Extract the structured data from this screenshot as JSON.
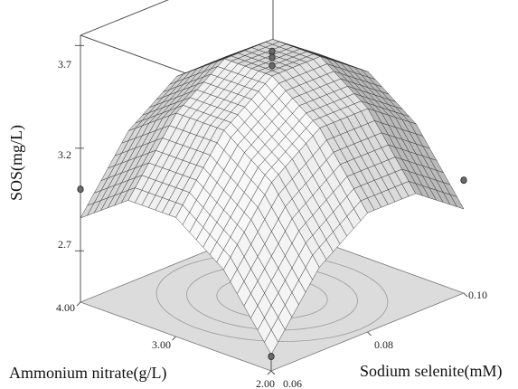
{
  "chart_data": {
    "type": "surface3d",
    "zlabel": "SOS(mg/L)",
    "xlabel": "Ammonium nitrate(g/L)",
    "ylabel": "Sodium selenite(mM)",
    "x_ticks": [
      "2.00",
      "3.00",
      "4.00"
    ],
    "y_ticks": [
      "0.06",
      "0.08",
      "0.10"
    ],
    "z_ticks": [
      "2.7",
      "3.2",
      "3.7"
    ],
    "xlim": [
      2.0,
      4.0
    ],
    "ylim": [
      0.06,
      0.1
    ],
    "zlim": [
      2.45,
      3.75
    ],
    "surface": {
      "x_values": [
        2.0,
        2.5,
        3.0,
        3.5,
        4.0
      ],
      "y_values": [
        0.06,
        0.07,
        0.08,
        0.09,
        0.1
      ],
      "z_values": [
        [
          2.53,
          2.86,
          3.03,
          3.03,
          2.86
        ],
        [
          2.86,
          3.19,
          3.36,
          3.36,
          3.19
        ],
        [
          3.03,
          3.36,
          3.53,
          3.53,
          3.36
        ],
        [
          3.03,
          3.36,
          3.53,
          3.53,
          3.36
        ],
        [
          2.86,
          3.19,
          3.36,
          3.36,
          3.19
        ]
      ]
    },
    "design_points": [
      {
        "x": 3.0,
        "y": 0.08,
        "z": 3.65
      },
      {
        "x": 3.0,
        "y": 0.08,
        "z": 3.62
      },
      {
        "x": 3.0,
        "y": 0.08,
        "z": 3.58
      },
      {
        "x": 4.0,
        "y": 0.06,
        "z": 3.0
      },
      {
        "x": 2.0,
        "y": 0.1,
        "z": 3.0
      },
      {
        "x": 2.0,
        "y": 0.06,
        "z": 2.52
      }
    ],
    "grid": false
  }
}
